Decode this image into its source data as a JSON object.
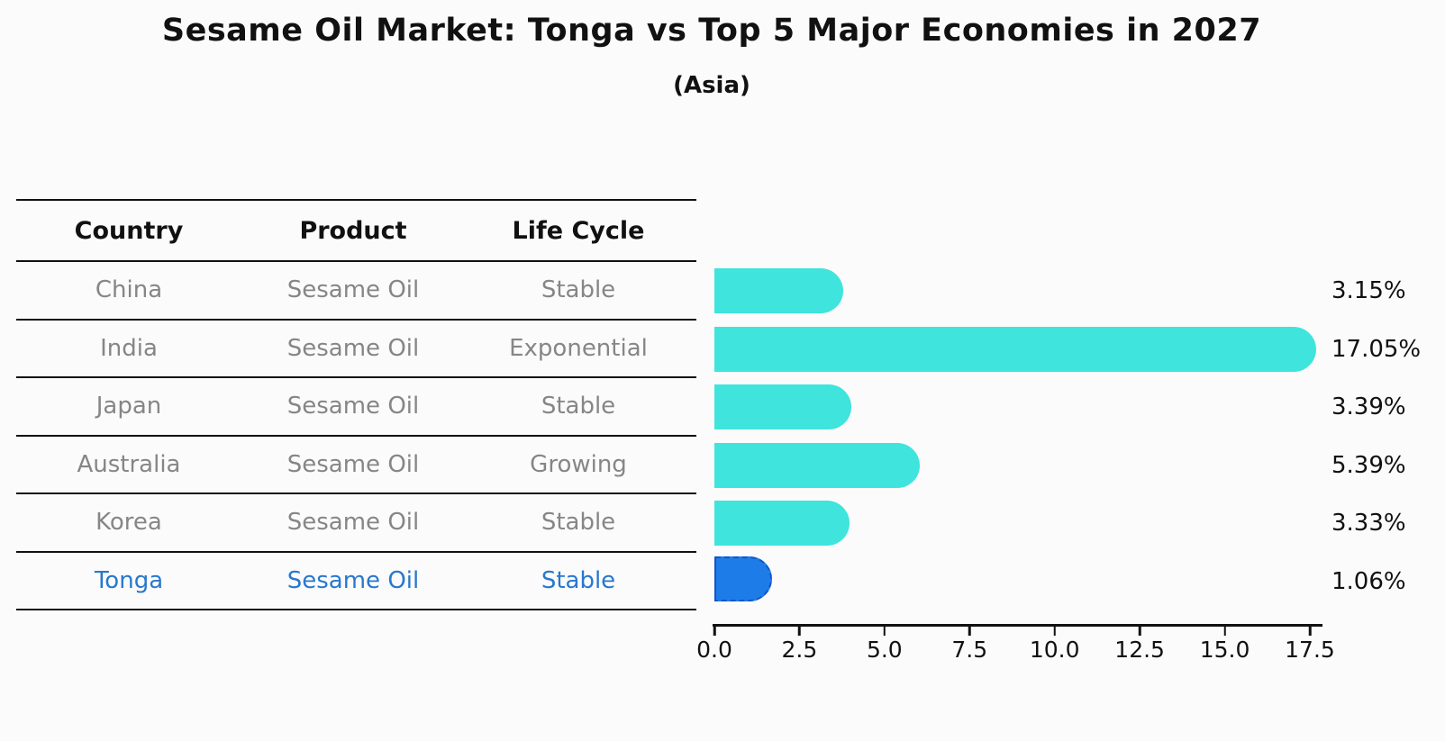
{
  "title": "Sesame Oil Market: Tonga vs Top 5 Major Economies in 2027",
  "subtitle": "(Asia)",
  "table": {
    "headers": [
      "Country",
      "Product",
      "Life Cycle"
    ],
    "rows": [
      {
        "country": "China",
        "product": "Sesame Oil",
        "life_cycle": "Stable",
        "highlight": false
      },
      {
        "country": "India",
        "product": "Sesame Oil",
        "life_cycle": "Exponential",
        "highlight": false
      },
      {
        "country": "Japan",
        "product": "Sesame Oil",
        "life_cycle": "Stable",
        "highlight": false
      },
      {
        "country": "Australia",
        "product": "Sesame Oil",
        "life_cycle": "Growing",
        "highlight": false
      },
      {
        "country": "Korea",
        "product": "Sesame Oil",
        "life_cycle": "Stable",
        "highlight": false
      },
      {
        "country": "Tonga",
        "product": "Sesame Oil",
        "life_cycle": "Stable",
        "highlight": true
      }
    ]
  },
  "chart_data": {
    "type": "bar",
    "orientation": "horizontal",
    "categories": [
      "China",
      "India",
      "Japan",
      "Australia",
      "Korea",
      "Tonga"
    ],
    "values": [
      3.15,
      17.05,
      3.39,
      5.39,
      3.33,
      1.06
    ],
    "value_labels": [
      "3.15%",
      "17.05%",
      "3.39%",
      "5.39%",
      "3.33%",
      "1.06%"
    ],
    "x_ticks": [
      "0.0",
      "2.5",
      "5.0",
      "7.5",
      "10.0",
      "12.5",
      "15.0",
      "17.5"
    ],
    "x_tick_values": [
      0,
      2.5,
      5,
      7.5,
      10,
      12.5,
      15,
      17.5
    ],
    "xlim": [
      0,
      17.5
    ],
    "grid": false,
    "legend": "none",
    "bar_color": "#3fe4dc",
    "highlight_color": "#1e7ce8",
    "highlight_edge_color": "#1552c8",
    "highlight_index": 5,
    "highlight_text_color": "#2878cd"
  }
}
